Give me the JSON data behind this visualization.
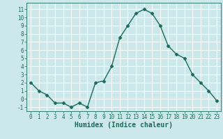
{
  "x": [
    0,
    1,
    2,
    3,
    4,
    5,
    6,
    7,
    8,
    9,
    10,
    11,
    12,
    13,
    14,
    15,
    16,
    17,
    18,
    19,
    20,
    21,
    22,
    23
  ],
  "y": [
    2,
    1,
    0.5,
    -0.5,
    -0.5,
    -1,
    -0.5,
    -1,
    2,
    2.2,
    4,
    7.5,
    9,
    10.5,
    11,
    10.5,
    9,
    6.5,
    5.5,
    5,
    3,
    2,
    1,
    -0.2
  ],
  "line_color": "#1a6b5a",
  "marker": "D",
  "marker_size": 2.5,
  "bg_color": "#cde8ea",
  "grid_color": "#ffffff",
  "xlabel": "Humidex (Indice chaleur)",
  "ylim": [
    -1.5,
    11.8
  ],
  "xlim": [
    -0.5,
    23.5
  ],
  "yticks": [
    -1,
    0,
    1,
    2,
    3,
    4,
    5,
    6,
    7,
    8,
    9,
    10,
    11
  ],
  "xticks": [
    0,
    1,
    2,
    3,
    4,
    5,
    6,
    7,
    8,
    9,
    10,
    11,
    12,
    13,
    14,
    15,
    16,
    17,
    18,
    19,
    20,
    21,
    22,
    23
  ],
  "tick_fontsize": 5.5,
  "xlabel_fontsize": 7.0,
  "line_width": 1.0
}
